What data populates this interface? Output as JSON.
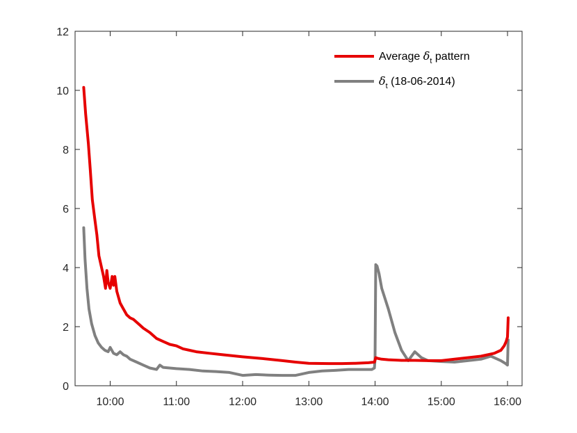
{
  "chart_data": {
    "type": "line",
    "title": "",
    "xlabel": "",
    "ylabel": "",
    "xlim": [
      9.47,
      16.22
    ],
    "ylim": [
      0,
      12
    ],
    "x_ticks": [
      10,
      11,
      12,
      13,
      14,
      15,
      16
    ],
    "x_tick_labels": [
      "10:00",
      "11:00",
      "12:00",
      "13:00",
      "14:00",
      "15:00",
      "16:00"
    ],
    "y_ticks": [
      0,
      2,
      4,
      6,
      8,
      10,
      12
    ],
    "y_tick_labels": [
      "0",
      "2",
      "4",
      "6",
      "8",
      "10",
      "12"
    ],
    "grid": false,
    "legend_position": "top-right",
    "legend": [
      {
        "prefix": "Average ",
        "symbol": "δ",
        "subscript": "t",
        "suffix": " pattern",
        "color": "#e60000"
      },
      {
        "prefix": "",
        "symbol": "δ",
        "subscript": "t",
        "suffix": " (18-06-2014)",
        "color": "#808080"
      }
    ],
    "series": [
      {
        "color": "#e60000",
        "x": [
          9.6,
          9.63,
          9.67,
          9.7,
          9.73,
          9.77,
          9.8,
          9.83,
          9.87,
          9.9,
          9.93,
          9.95,
          9.97,
          10.0,
          10.03,
          10.05,
          10.07,
          10.1,
          10.15,
          10.2,
          10.25,
          10.3,
          10.35,
          10.4,
          10.45,
          10.5,
          10.6,
          10.7,
          10.8,
          10.9,
          11.0,
          11.1,
          11.2,
          11.3,
          11.5,
          11.7,
          12.0,
          12.3,
          12.6,
          12.8,
          13.0,
          13.3,
          13.5,
          13.7,
          13.9,
          13.99,
          14.01,
          14.05,
          14.1,
          14.2,
          14.4,
          14.6,
          14.8,
          15.0,
          15.2,
          15.4,
          15.6,
          15.8,
          15.9,
          15.95,
          15.98,
          16.0,
          16.01
        ],
        "y": [
          10.1,
          9.2,
          8.2,
          7.3,
          6.3,
          5.6,
          5.1,
          4.4,
          4.0,
          3.7,
          3.3,
          3.9,
          3.5,
          3.3,
          3.7,
          3.4,
          3.7,
          3.2,
          2.8,
          2.6,
          2.4,
          2.3,
          2.25,
          2.15,
          2.05,
          1.95,
          1.8,
          1.6,
          1.5,
          1.4,
          1.35,
          1.25,
          1.2,
          1.15,
          1.1,
          1.05,
          0.98,
          0.92,
          0.85,
          0.8,
          0.76,
          0.75,
          0.75,
          0.76,
          0.78,
          0.8,
          0.95,
          0.92,
          0.9,
          0.88,
          0.86,
          0.86,
          0.85,
          0.85,
          0.9,
          0.95,
          1.0,
          1.1,
          1.2,
          1.35,
          1.5,
          1.65,
          2.3
        ]
      },
      {
        "color": "#808080",
        "x": [
          9.6,
          9.62,
          9.65,
          9.68,
          9.72,
          9.77,
          9.82,
          9.87,
          9.92,
          9.97,
          10.0,
          10.05,
          10.1,
          10.15,
          10.2,
          10.25,
          10.3,
          10.4,
          10.5,
          10.6,
          10.7,
          10.75,
          10.8,
          11.0,
          11.2,
          11.4,
          11.6,
          11.8,
          12.0,
          12.2,
          12.4,
          12.6,
          12.8,
          13.0,
          13.2,
          13.4,
          13.6,
          13.8,
          13.95,
          13.99,
          14.0,
          14.01,
          14.03,
          14.06,
          14.1,
          14.2,
          14.3,
          14.4,
          14.5,
          14.6,
          14.7,
          14.8,
          15.0,
          15.2,
          15.4,
          15.6,
          15.75,
          15.9,
          15.97,
          16.0,
          16.01
        ],
        "y": [
          5.35,
          4.3,
          3.3,
          2.6,
          2.1,
          1.7,
          1.45,
          1.3,
          1.2,
          1.15,
          1.3,
          1.1,
          1.05,
          1.15,
          1.05,
          1.0,
          0.9,
          0.8,
          0.7,
          0.6,
          0.55,
          0.7,
          0.62,
          0.58,
          0.55,
          0.5,
          0.48,
          0.45,
          0.35,
          0.38,
          0.36,
          0.35,
          0.35,
          0.45,
          0.5,
          0.52,
          0.55,
          0.55,
          0.55,
          0.6,
          0.9,
          4.1,
          4.05,
          3.8,
          3.3,
          2.6,
          1.8,
          1.2,
          0.85,
          1.15,
          0.95,
          0.85,
          0.82,
          0.8,
          0.85,
          0.9,
          1.0,
          0.85,
          0.75,
          0.7,
          1.55
        ]
      }
    ]
  }
}
